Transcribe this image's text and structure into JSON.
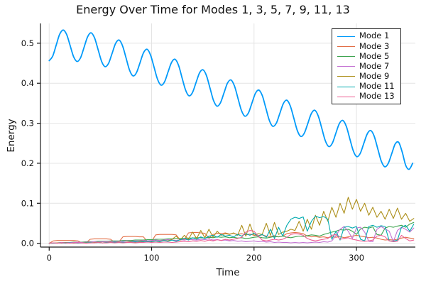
{
  "chart_data": {
    "type": "line",
    "title": "Energy Over Time for Modes 1, 3, 5, 7, 9, 11, 13",
    "xlabel": "Time",
    "ylabel": "Energy",
    "xlim": [
      -8.5,
      357.5
    ],
    "ylim": [
      -0.0095,
      0.5495
    ],
    "x_ticks": [
      0,
      100,
      200,
      300
    ],
    "x_tick_labels": [
      "0",
      "100",
      "200",
      "300"
    ],
    "y_ticks": [
      0.0,
      0.1,
      0.2,
      0.3,
      0.4,
      0.5
    ],
    "y_tick_labels": [
      "0.0",
      "0.1",
      "0.2",
      "0.3",
      "0.4",
      "0.5"
    ],
    "grid": true,
    "grid_color": "#e4e4e4",
    "axis_color": "#1a1a1a",
    "legend_position": "top-right",
    "series": [
      {
        "name": "Mode 1",
        "color": "#009AFA",
        "smooth": true,
        "width": 1.8,
        "t0": 0,
        "dt": 3.4125,
        "values": [
          0.4565,
          0.4677,
          0.495,
          0.5223,
          0.533,
          0.5218,
          0.494,
          0.4661,
          0.4544,
          0.4642,
          0.4902,
          0.5162,
          0.526,
          0.513,
          0.4839,
          0.4547,
          0.4415,
          0.45,
          0.4747,
          0.4994,
          0.5079,
          0.4935,
          0.4631,
          0.4326,
          0.4183,
          0.4268,
          0.4516,
          0.4763,
          0.4849,
          0.4706,
          0.4402,
          0.4098,
          0.3953,
          0.4034,
          0.4277,
          0.4519,
          0.46,
          0.4452,
          0.4143,
          0.3834,
          0.3686,
          0.3768,
          0.4012,
          0.4255,
          0.4337,
          0.4191,
          0.3883,
          0.3575,
          0.3428,
          0.3511,
          0.3755,
          0.4,
          0.4082,
          0.3936,
          0.3629,
          0.3322,
          0.3176,
          0.3258,
          0.3503,
          0.3747,
          0.3829,
          0.3684,
          0.3376,
          0.3069,
          0.2923,
          0.3006,
          0.325,
          0.3494,
          0.3577,
          0.3431,
          0.3124,
          0.2816,
          0.267,
          0.2753,
          0.2997,
          0.3242,
          0.3324,
          0.3178,
          0.2871,
          0.2564,
          0.2418,
          0.25,
          0.2745,
          0.2989,
          0.3071,
          0.2925,
          0.2618,
          0.2311,
          0.2165,
          0.2248,
          0.2492,
          0.2736,
          0.2818,
          0.2673,
          0.2365,
          0.2058,
          0.1912,
          0.1995,
          0.2239,
          0.2483,
          0.252,
          0.228,
          0.195,
          0.185,
          0.2
        ]
      },
      {
        "name": "Mode 3",
        "color": "#E36F47",
        "smooth": false,
        "width": 1.1,
        "t0": 0,
        "dt": 4,
        "values": [
          0.0,
          0.006,
          0.007,
          0.007,
          0.007,
          0.007,
          0.007,
          0.006,
          0.001,
          0.001,
          0.01,
          0.011,
          0.011,
          0.011,
          0.011,
          0.01,
          0.002,
          0.003,
          0.016,
          0.017,
          0.017,
          0.017,
          0.016,
          0.016,
          0.004,
          0.005,
          0.021,
          0.022,
          0.022,
          0.022,
          0.022,
          0.021,
          0.008,
          0.01,
          0.026,
          0.027,
          0.027,
          0.026,
          0.025,
          0.013,
          0.022,
          0.025,
          0.024,
          0.026,
          0.023,
          0.025,
          0.022,
          0.024,
          0.021,
          0.023,
          0.02,
          0.019,
          0.021,
          0.018,
          0.017,
          0.019,
          0.016,
          0.018,
          0.024,
          0.026,
          0.027,
          0.026,
          0.024,
          0.018,
          0.016,
          0.017,
          0.015,
          0.016,
          0.014,
          0.016,
          0.015,
          0.017,
          0.014,
          0.016,
          0.018,
          0.02,
          0.018,
          0.016,
          0.014,
          0.015,
          0.013,
          0.01,
          0.008,
          0.009,
          0.008,
          0.01,
          0.013,
          0.015,
          0.013,
          0.012
        ]
      },
      {
        "name": "Mode 5",
        "color": "#3DA44E",
        "smooth": false,
        "width": 1.1,
        "t0": 0,
        "dt": 4,
        "values": [
          0.0,
          0.001,
          0.001,
          0.002,
          0.002,
          0.002,
          0.003,
          0.003,
          0.003,
          0.004,
          0.004,
          0.004,
          0.005,
          0.005,
          0.005,
          0.006,
          0.006,
          0.006,
          0.007,
          0.007,
          0.007,
          0.008,
          0.008,
          0.008,
          0.009,
          0.009,
          0.01,
          0.01,
          0.01,
          0.011,
          0.011,
          0.012,
          0.012,
          0.012,
          0.013,
          0.013,
          0.014,
          0.014,
          0.013,
          0.015,
          0.014,
          0.016,
          0.015,
          0.016,
          0.014,
          0.015,
          0.013,
          0.014,
          0.012,
          0.013,
          0.015,
          0.016,
          0.014,
          0.013,
          0.015,
          0.017,
          0.016,
          0.018,
          0.015,
          0.014,
          0.016,
          0.018,
          0.017,
          0.019,
          0.021,
          0.02,
          0.018,
          0.022,
          0.025,
          0.028,
          0.03,
          0.034,
          0.033,
          0.035,
          0.03,
          0.022,
          0.036,
          0.04,
          0.038,
          0.041,
          0.022,
          0.02,
          0.038,
          0.042,
          0.04,
          0.043,
          0.045,
          0.04,
          0.048,
          0.052
        ]
      },
      {
        "name": "Mode 7",
        "color": "#C371D2",
        "smooth": false,
        "width": 1.1,
        "t0": 0,
        "dt": 4,
        "values": [
          0.0,
          0.001,
          0.001,
          0.002,
          0.001,
          0.002,
          0.002,
          0.003,
          0.002,
          0.003,
          0.003,
          0.004,
          0.003,
          0.004,
          0.004,
          0.005,
          0.004,
          0.005,
          0.005,
          0.006,
          0.005,
          0.006,
          0.006,
          0.007,
          0.006,
          0.007,
          0.008,
          0.007,
          0.008,
          0.009,
          0.008,
          0.007,
          0.009,
          0.008,
          0.01,
          0.009,
          0.008,
          0.01,
          0.009,
          0.011,
          0.008,
          0.009,
          0.007,
          0.008,
          0.006,
          0.007,
          0.005,
          0.006,
          0.004,
          0.005,
          0.006,
          0.004,
          0.005,
          0.003,
          0.004,
          0.002,
          0.003,
          0.002,
          0.002,
          0.001,
          0.002,
          0.001,
          0.002,
          0.001,
          0.002,
          0.003,
          0.002,
          0.004,
          0.003,
          0.006,
          0.02,
          0.035,
          0.042,
          0.03,
          0.012,
          0.038,
          0.04,
          0.028,
          0.005,
          0.004,
          0.035,
          0.042,
          0.036,
          0.03,
          0.004,
          0.032,
          0.04,
          0.035,
          0.028,
          0.038
        ]
      },
      {
        "name": "Mode 9",
        "color": "#AC8E18",
        "smooth": false,
        "width": 1.1,
        "t0": 0,
        "dt": 4,
        "values": [
          0.0,
          0.0,
          0.001,
          0.0,
          0.001,
          0.001,
          0.0,
          0.001,
          0.001,
          0.002,
          0.001,
          0.002,
          0.002,
          0.001,
          0.002,
          0.003,
          0.002,
          0.003,
          0.002,
          0.003,
          0.004,
          0.003,
          0.004,
          0.005,
          0.004,
          0.005,
          0.006,
          0.005,
          0.007,
          0.006,
          0.01,
          0.018,
          0.008,
          0.02,
          0.01,
          0.028,
          0.012,
          0.032,
          0.014,
          0.035,
          0.015,
          0.03,
          0.02,
          0.024,
          0.022,
          0.026,
          0.02,
          0.045,
          0.018,
          0.048,
          0.02,
          0.024,
          0.022,
          0.05,
          0.02,
          0.052,
          0.022,
          0.028,
          0.03,
          0.035,
          0.032,
          0.055,
          0.03,
          0.06,
          0.035,
          0.07,
          0.045,
          0.08,
          0.055,
          0.09,
          0.065,
          0.1,
          0.075,
          0.115,
          0.085,
          0.11,
          0.08,
          0.1,
          0.07,
          0.09,
          0.065,
          0.08,
          0.06,
          0.085,
          0.062,
          0.088,
          0.06,
          0.075,
          0.055,
          0.062
        ]
      },
      {
        "name": "Mode 11",
        "color": "#00AAAE",
        "smooth": false,
        "width": 1.1,
        "t0": 0,
        "dt": 4,
        "values": [
          0.0,
          0.0,
          0.0,
          0.001,
          0.0,
          0.001,
          0.001,
          0.0,
          0.001,
          0.001,
          0.002,
          0.001,
          0.002,
          0.001,
          0.002,
          0.002,
          0.003,
          0.002,
          0.003,
          0.002,
          0.003,
          0.004,
          0.003,
          0.004,
          0.005,
          0.004,
          0.006,
          0.004,
          0.007,
          0.005,
          0.008,
          0.005,
          0.009,
          0.012,
          0.008,
          0.014,
          0.01,
          0.016,
          0.012,
          0.018,
          0.02,
          0.015,
          0.022,
          0.018,
          0.02,
          0.016,
          0.022,
          0.018,
          0.024,
          0.02,
          0.025,
          0.018,
          0.022,
          0.015,
          0.035,
          0.012,
          0.04,
          0.018,
          0.045,
          0.06,
          0.065,
          0.062,
          0.066,
          0.03,
          0.055,
          0.068,
          0.064,
          0.067,
          0.06,
          0.01,
          0.03,
          0.008,
          0.04,
          0.042,
          0.038,
          0.042,
          0.01,
          0.006,
          0.042,
          0.045,
          0.04,
          0.044,
          0.042,
          0.006,
          0.005,
          0.008,
          0.04,
          0.045,
          0.03,
          0.048
        ]
      },
      {
        "name": "Mode 13",
        "color": "#ED5D92",
        "smooth": false,
        "width": 1.1,
        "t0": 0,
        "dt": 4,
        "values": [
          0.0,
          0.001,
          0.0,
          0.001,
          0.001,
          0.0,
          0.001,
          0.001,
          0.001,
          0.0,
          0.001,
          0.001,
          0.002,
          0.001,
          0.001,
          0.002,
          0.001,
          0.002,
          0.001,
          0.002,
          0.002,
          0.001,
          0.002,
          0.002,
          0.003,
          0.002,
          0.003,
          0.002,
          0.003,
          0.003,
          0.002,
          0.003,
          0.004,
          0.005,
          0.004,
          0.006,
          0.005,
          0.007,
          0.005,
          0.008,
          0.006,
          0.009,
          0.007,
          0.01,
          0.008,
          0.01,
          0.012,
          0.015,
          0.028,
          0.032,
          0.03,
          0.018,
          0.008,
          0.006,
          0.008,
          0.01,
          0.008,
          0.01,
          0.015,
          0.022,
          0.024,
          0.023,
          0.02,
          0.012,
          0.008,
          0.006,
          0.008,
          0.01,
          0.012,
          0.02,
          0.022,
          0.01,
          0.012,
          0.014,
          0.01,
          0.008,
          0.006,
          0.005,
          0.006,
          0.008,
          0.018,
          0.02,
          0.016,
          0.006,
          0.004,
          0.005,
          0.02,
          0.012,
          0.006,
          0.008
        ]
      }
    ]
  }
}
